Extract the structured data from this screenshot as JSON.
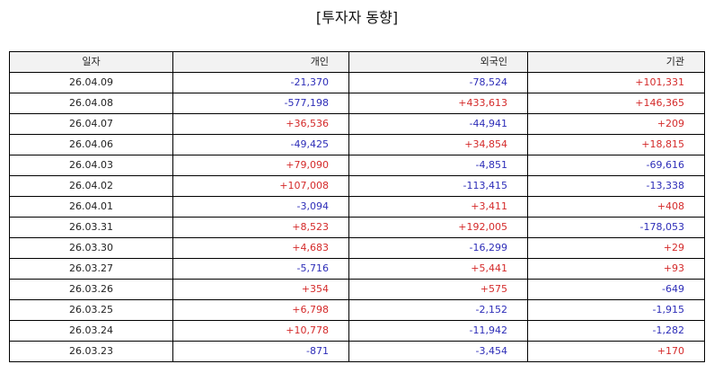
{
  "title": "[투자자 동향]",
  "colors": {
    "positive": "#d42a2a",
    "negative": "#2d2db8",
    "header_bg": "#f2f2f2",
    "border": "#000000"
  },
  "table": {
    "headers": [
      "일자",
      "개인",
      "외국인",
      "기관"
    ],
    "rows": [
      {
        "date": "26.04.09",
        "individual": "-21,370",
        "foreign": "-78,524",
        "institution": "+101,331"
      },
      {
        "date": "26.04.08",
        "individual": "-577,198",
        "foreign": "+433,613",
        "institution": "+146,365"
      },
      {
        "date": "26.04.07",
        "individual": "+36,536",
        "foreign": "-44,941",
        "institution": "+209"
      },
      {
        "date": "26.04.06",
        "individual": "-49,425",
        "foreign": "+34,854",
        "institution": "+18,815"
      },
      {
        "date": "26.04.03",
        "individual": "+79,090",
        "foreign": "-4,851",
        "institution": "-69,616"
      },
      {
        "date": "26.04.02",
        "individual": "+107,008",
        "foreign": "-113,415",
        "institution": "-13,338"
      },
      {
        "date": "26.04.01",
        "individual": "-3,094",
        "foreign": "+3,411",
        "institution": "+408"
      },
      {
        "date": "26.03.31",
        "individual": "+8,523",
        "foreign": "+192,005",
        "institution": "-178,053"
      },
      {
        "date": "26.03.30",
        "individual": "+4,683",
        "foreign": "-16,299",
        "institution": "+29"
      },
      {
        "date": "26.03.27",
        "individual": "-5,716",
        "foreign": "+5,441",
        "institution": "+93"
      },
      {
        "date": "26.03.26",
        "individual": "+354",
        "foreign": "+575",
        "institution": "-649"
      },
      {
        "date": "26.03.25",
        "individual": "+6,798",
        "foreign": "-2,152",
        "institution": "-1,915"
      },
      {
        "date": "26.03.24",
        "individual": "+10,778",
        "foreign": "-11,942",
        "institution": "-1,282"
      },
      {
        "date": "26.03.23",
        "individual": "-871",
        "foreign": "-3,454",
        "institution": "+170"
      }
    ]
  }
}
